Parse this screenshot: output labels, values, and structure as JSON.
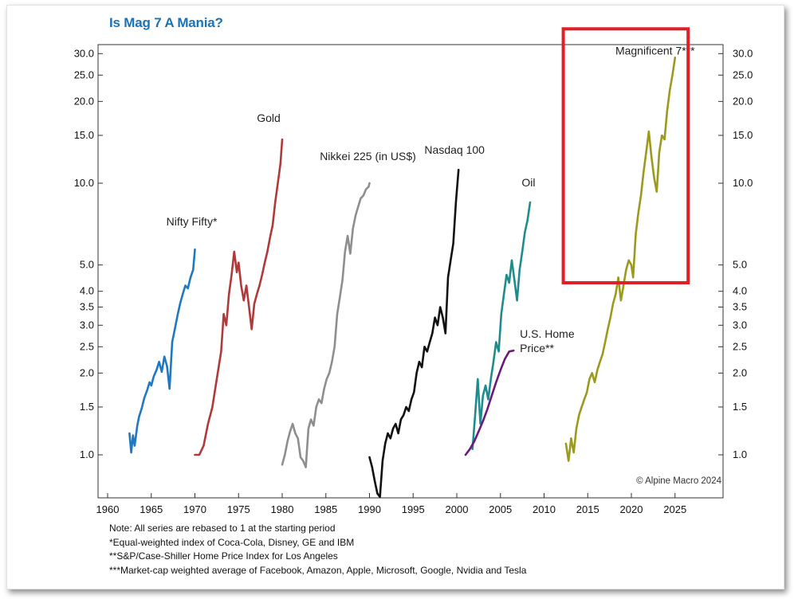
{
  "title": "Is Mag 7 A Mania?",
  "copyright": "© Alpine Macro 2024",
  "notes": [
    "Note: All series are rebased to 1 at the starting period",
    "*Equal-weighted index of Coca-Cola, Disney, GE and IBM",
    "**S&P/Case-Shiller Home Price Index for Los Angeles",
    "***Market-cap weighted average of Facebook, Amazon, Apple, Microsoft, Google, Nvidia and Tesla"
  ],
  "colors": {
    "title": "#1a73b8",
    "highlight_box": "#e01f26"
  },
  "chart_data": {
    "type": "line",
    "yscale": "log",
    "xlim": [
      1960,
      2028
    ],
    "ylim": [
      0.55,
      32
    ],
    "xticks": [
      1960,
      1965,
      1970,
      1975,
      1980,
      1985,
      1990,
      1995,
      2000,
      2005,
      2010,
      2015,
      2020,
      2025
    ],
    "yticks": [
      1.0,
      1.5,
      2.0,
      2.5,
      3.0,
      3.5,
      4.0,
      5.0,
      10.0,
      15.0,
      20.0,
      25.0,
      30.0
    ],
    "ytick_labels": [
      "1.0",
      "1.5",
      "2.0",
      "2.5",
      "3.0",
      "3.5",
      "4.0",
      "5.0",
      "10.0",
      "15.0",
      "20.0",
      "25.0",
      "30.0"
    ],
    "grid": false,
    "highlight": {
      "label_series": "Magnificent 7***",
      "x_range": [
        2012.2,
        2026.5
      ],
      "y_range": [
        4.3,
        37
      ]
    },
    "series": [
      {
        "name": "Nifty Fifty*",
        "color": "#1f78c1",
        "x": [
          1962.5,
          1962.7,
          1962.9,
          1963.1,
          1963.4,
          1963.6,
          1963.9,
          1964.2,
          1964.5,
          1964.8,
          1965.0,
          1965.3,
          1965.6,
          1965.9,
          1966.2,
          1966.5,
          1966.8,
          1967.1,
          1967.4,
          1967.7,
          1968.0,
          1968.3,
          1968.6,
          1968.9,
          1969.2,
          1969.5,
          1969.8,
          1970.0
        ],
        "y": [
          1.2,
          1.02,
          1.18,
          1.08,
          1.28,
          1.38,
          1.48,
          1.62,
          1.72,
          1.85,
          1.8,
          1.95,
          2.05,
          2.2,
          2.02,
          2.3,
          2.12,
          1.75,
          2.6,
          2.9,
          3.25,
          3.6,
          3.9,
          4.2,
          4.1,
          4.5,
          4.8,
          5.7
        ]
      },
      {
        "name": "Gold",
        "color": "#b0393a",
        "x": [
          1970.0,
          1970.5,
          1971.0,
          1971.5,
          1972.0,
          1972.5,
          1973.0,
          1973.3,
          1973.6,
          1973.9,
          1974.2,
          1974.5,
          1974.8,
          1975.0,
          1975.3,
          1975.6,
          1975.9,
          1976.2,
          1976.5,
          1976.8,
          1977.1,
          1977.4,
          1977.7,
          1978.0,
          1978.3,
          1978.6,
          1978.9,
          1979.2,
          1979.5,
          1979.8,
          1980.0
        ],
        "y": [
          1.0,
          1.0,
          1.08,
          1.3,
          1.5,
          1.9,
          2.4,
          3.3,
          3.0,
          3.9,
          4.6,
          5.6,
          4.7,
          5.1,
          4.2,
          3.7,
          4.2,
          3.5,
          2.9,
          3.6,
          3.9,
          4.2,
          4.6,
          5.1,
          5.6,
          6.3,
          7.0,
          8.5,
          10.0,
          11.8,
          14.5
        ]
      },
      {
        "name": "Nikkei 225 (in US$)",
        "color": "#8e8e8e",
        "x": [
          1980.0,
          1980.3,
          1980.6,
          1980.9,
          1981.2,
          1981.5,
          1981.8,
          1982.1,
          1982.4,
          1982.7,
          1983.0,
          1983.3,
          1983.6,
          1983.9,
          1984.2,
          1984.5,
          1984.8,
          1985.1,
          1985.4,
          1985.7,
          1986.0,
          1986.3,
          1986.6,
          1986.9,
          1987.2,
          1987.5,
          1987.8,
          1988.1,
          1988.4,
          1988.7,
          1989.0,
          1989.3,
          1989.6,
          1989.9,
          1990.0
        ],
        "y": [
          0.92,
          1.0,
          1.12,
          1.22,
          1.3,
          1.2,
          1.15,
          0.98,
          0.95,
          0.9,
          1.25,
          1.35,
          1.28,
          1.5,
          1.6,
          1.55,
          1.75,
          1.9,
          2.0,
          2.2,
          2.5,
          3.3,
          3.8,
          4.4,
          5.6,
          6.4,
          5.5,
          6.8,
          7.6,
          8.2,
          8.8,
          9.0,
          9.5,
          9.7,
          10.0
        ]
      },
      {
        "name": "Nasdaq 100",
        "color": "#111111",
        "x": [
          1990.0,
          1990.3,
          1990.6,
          1990.9,
          1991.2,
          1991.5,
          1991.8,
          1992.1,
          1992.4,
          1992.7,
          1993.0,
          1993.3,
          1993.6,
          1993.9,
          1994.2,
          1994.5,
          1994.8,
          1995.1,
          1995.4,
          1995.7,
          1996.0,
          1996.3,
          1996.6,
          1996.9,
          1997.2,
          1997.5,
          1997.8,
          1998.1,
          1998.4,
          1998.7,
          1999.0,
          1999.3,
          1999.6,
          1999.9,
          2000.2
        ],
        "y": [
          0.98,
          0.9,
          0.8,
          0.72,
          0.7,
          0.95,
          1.1,
          1.2,
          1.15,
          1.25,
          1.3,
          1.2,
          1.35,
          1.4,
          1.5,
          1.45,
          1.6,
          1.7,
          2.0,
          2.2,
          2.1,
          2.5,
          2.4,
          2.6,
          2.8,
          3.2,
          3.0,
          3.5,
          3.2,
          2.8,
          4.5,
          5.2,
          6.0,
          8.5,
          11.2
        ]
      },
      {
        "name": "Oil",
        "color": "#1f8c8c",
        "x": [
          2001.8,
          2002.1,
          2002.4,
          2002.7,
          2003.0,
          2003.3,
          2003.6,
          2003.9,
          2004.2,
          2004.5,
          2004.8,
          2005.1,
          2005.4,
          2005.7,
          2006.0,
          2006.3,
          2006.6,
          2006.9,
          2007.2,
          2007.5,
          2007.8,
          2008.1,
          2008.4
        ],
        "y": [
          1.05,
          1.4,
          1.9,
          1.3,
          1.65,
          1.8,
          1.6,
          1.9,
          2.2,
          2.6,
          2.4,
          3.3,
          3.9,
          4.6,
          4.3,
          5.2,
          4.4,
          3.7,
          4.8,
          5.6,
          6.6,
          7.3,
          8.5
        ]
      },
      {
        "name": "U.S. Home Price**",
        "color": "#6a1a7a",
        "x": [
          2001.0,
          2001.5,
          2002.0,
          2002.5,
          2003.0,
          2003.5,
          2004.0,
          2004.5,
          2005.0,
          2005.5,
          2006.0,
          2006.5
        ],
        "y": [
          1.0,
          1.05,
          1.12,
          1.22,
          1.33,
          1.47,
          1.65,
          1.85,
          2.05,
          2.25,
          2.4,
          2.42
        ]
      },
      {
        "name": "Magnificent 7***",
        "color": "#9c9a1c",
        "x": [
          2012.5,
          2012.8,
          2013.1,
          2013.4,
          2013.7,
          2014.0,
          2014.3,
          2014.6,
          2014.9,
          2015.2,
          2015.5,
          2015.8,
          2016.1,
          2016.4,
          2016.7,
          2017.0,
          2017.3,
          2017.6,
          2017.9,
          2018.2,
          2018.5,
          2018.8,
          2019.1,
          2019.4,
          2019.7,
          2020.0,
          2020.2,
          2020.5,
          2020.8,
          2021.1,
          2021.4,
          2021.7,
          2022.0,
          2022.3,
          2022.6,
          2022.9,
          2023.2,
          2023.5,
          2023.8,
          2024.1,
          2024.4,
          2024.7,
          2025.0
        ],
        "y": [
          1.1,
          0.95,
          1.15,
          1.02,
          1.25,
          1.4,
          1.5,
          1.6,
          1.7,
          1.9,
          2.0,
          1.85,
          2.05,
          2.2,
          2.35,
          2.6,
          2.9,
          3.2,
          3.6,
          3.9,
          4.5,
          3.7,
          4.2,
          4.8,
          5.2,
          5.0,
          4.5,
          6.5,
          7.8,
          9.0,
          11.0,
          13.0,
          15.5,
          12.5,
          10.5,
          9.3,
          13.0,
          15.0,
          14.5,
          18.5,
          22.0,
          25.0,
          29.0
        ]
      }
    ]
  }
}
